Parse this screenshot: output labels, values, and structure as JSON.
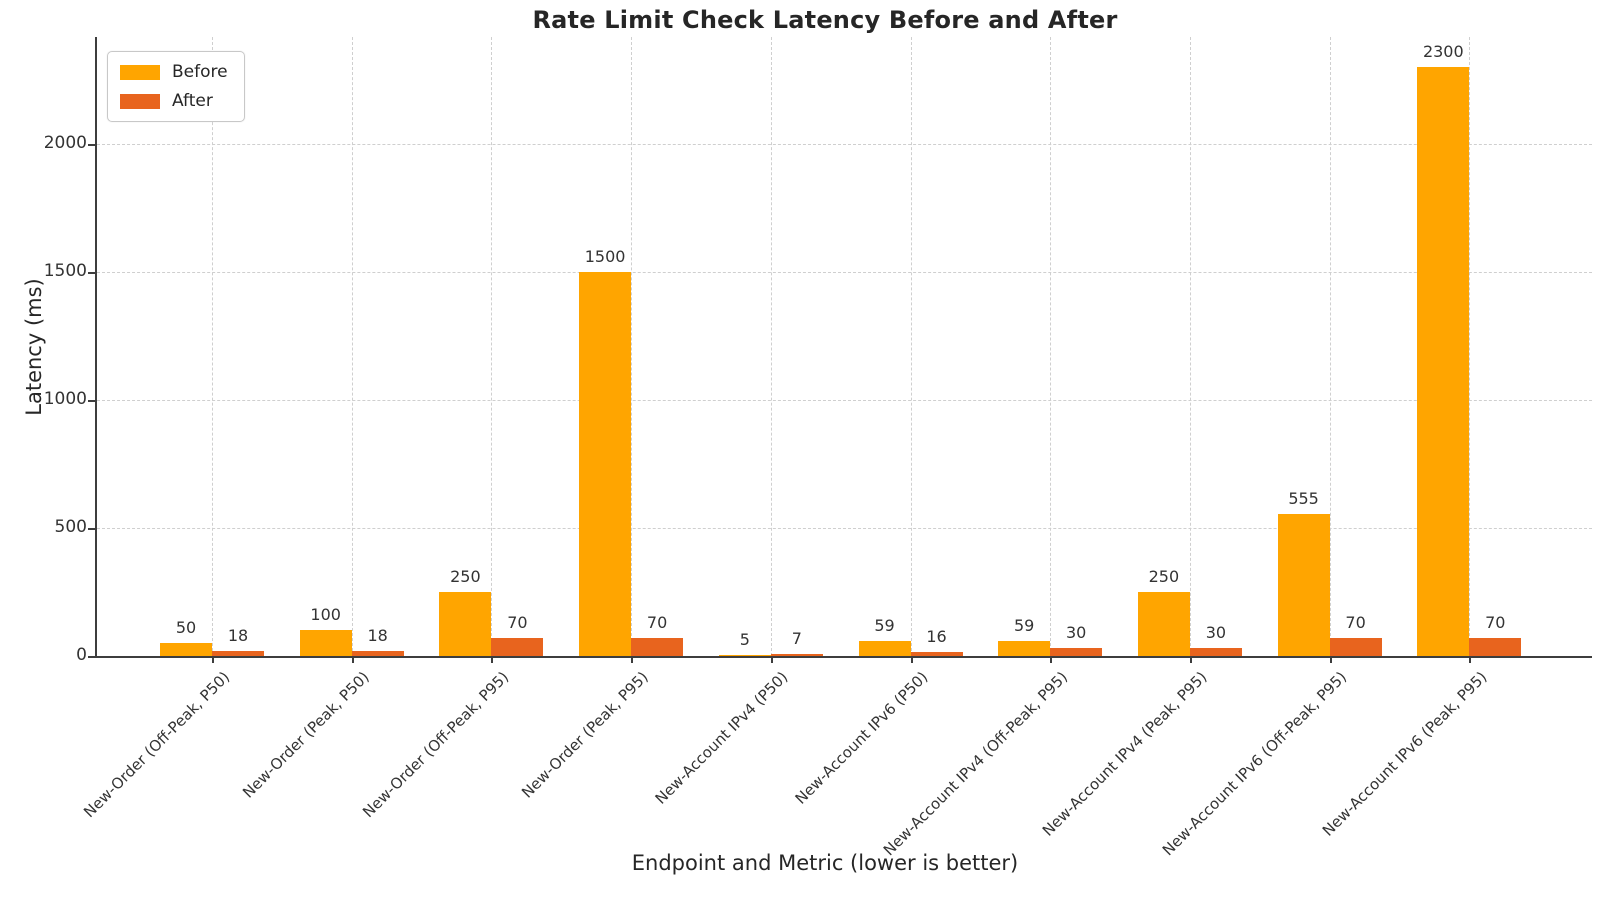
{
  "chart_data": {
    "type": "bar",
    "title": "Rate Limit Check Latency Before and After",
    "xlabel": "Endpoint and Metric (lower is better)",
    "ylabel": "Latency (ms)",
    "categories": [
      "New-Order (Off-Peak, P50)",
      "New-Order (Peak, P50)",
      "New-Order (Off-Peak, P95)",
      "New-Order (Peak, P95)",
      "New-Account IPv4 (P50)",
      "New-Account IPv6 (P50)",
      "New-Account IPv4 (Off-Peak, P95)",
      "New-Account IPv4 (Peak, P95)",
      "New-Account IPv6 (Off-Peak, P95)",
      "New-Account IPv6 (Peak, P95)"
    ],
    "series": [
      {
        "name": "Before",
        "color": "#FFA500",
        "values": [
          50,
          100,
          250,
          1500,
          5,
          59,
          59,
          250,
          555,
          2300
        ]
      },
      {
        "name": "After",
        "color": "#E8641E",
        "values": [
          18,
          18,
          70,
          70,
          7,
          16,
          30,
          30,
          70,
          70
        ]
      }
    ],
    "bar_value_labels": true,
    "yticks": [
      0,
      500,
      1000,
      1500,
      2000
    ],
    "ylim": [
      0,
      2418
    ],
    "grid": true,
    "grid_style": "dashed",
    "legend_position": "upper-left",
    "axis_color": "#3d3d3d",
    "grid_color": "#cfcfcf",
    "text_color": "#333333"
  }
}
